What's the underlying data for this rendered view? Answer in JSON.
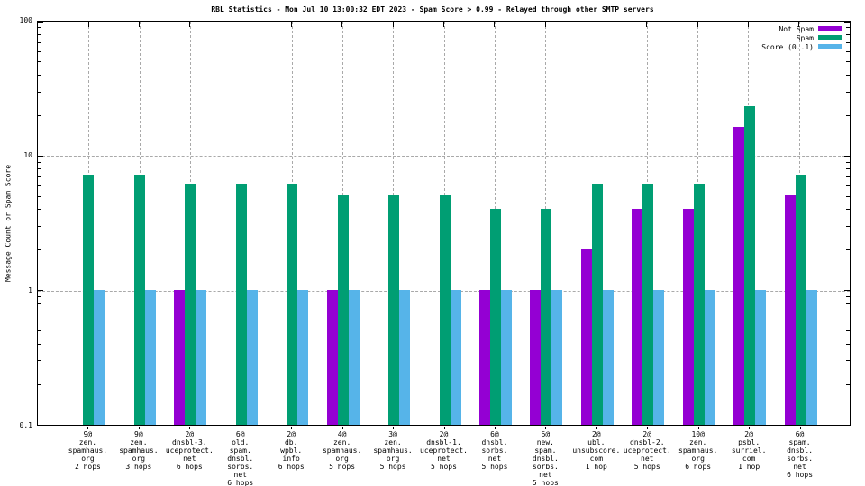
{
  "title": "RBL Statistics - Mon Jul 10 13:00:32 EDT 2023 - Spam Score > 0.99 - Relayed through other SMTP servers",
  "colors": {
    "not_spam": "#9400d3",
    "spam": "#009e73",
    "score": "#56b4e9",
    "grid": "#a9a9a9",
    "axis": "#000000",
    "background": "#ffffff"
  },
  "chart_data": {
    "type": "bar",
    "title": "RBL Statistics - Mon Jul 10 13:00:32 EDT 2023 - Spam Score > 0.99 - Relayed through other SMTP servers",
    "xlabel": "",
    "ylabel": "Message Count or Spam Score",
    "y_scale": "log",
    "ylim": [
      0.1,
      100
    ],
    "y_ticks": [
      {
        "label": "100",
        "value": 100
      },
      {
        "label": "10",
        "value": 10
      },
      {
        "label": "1",
        "value": 1
      },
      {
        "label": "0.1",
        "value": 0.1
      }
    ],
    "grid_y_values": [
      10,
      1
    ],
    "grid": true,
    "legend_position": "top-right",
    "categories": [
      [
        "9@",
        "zen.",
        "spamhaus.",
        "org",
        "2 hops"
      ],
      [
        "9@",
        "zen.",
        "spamhaus.",
        "org",
        "3 hops"
      ],
      [
        "2@",
        "dnsbl-3.",
        "uceprotect.",
        "net",
        "6 hops"
      ],
      [
        "6@",
        "old.",
        "spam.",
        "dnsbl.",
        "sorbs.",
        "net",
        "6 hops"
      ],
      [
        "2@",
        "db.",
        "wpbl.",
        "info",
        "6 hops"
      ],
      [
        "4@",
        "zen.",
        "spamhaus.",
        "org",
        "5 hops"
      ],
      [
        "3@",
        "zen.",
        "spamhaus.",
        "org",
        "5 hops"
      ],
      [
        "2@",
        "dnsbl-1.",
        "uceprotect.",
        "net",
        "5 hops"
      ],
      [
        "6@",
        "dnsbl.",
        "sorbs.",
        "net",
        "5 hops"
      ],
      [
        "6@",
        "new.",
        "spam.",
        "dnsbl.",
        "sorbs.",
        "net",
        "5 hops"
      ],
      [
        "2@",
        "ubl.",
        "unsubscore.",
        "com",
        "1 hop"
      ],
      [
        "2@",
        "dnsbl-2.",
        "uceprotect.",
        "net",
        "5 hops"
      ],
      [
        "10@",
        "zen.",
        "spamhaus.",
        "org",
        "6 hops"
      ],
      [
        "2@",
        "psbl.",
        "surriel.",
        "com",
        "1 hop"
      ],
      [
        "6@",
        "spam.",
        "dnsbl.",
        "sorbs.",
        "net",
        "6 hops"
      ]
    ],
    "series": [
      {
        "name": "Not Spam",
        "color": "#9400d3",
        "values": [
          0,
          0,
          1,
          0,
          0,
          1,
          0,
          0,
          1,
          1,
          2,
          4,
          4,
          16,
          5
        ]
      },
      {
        "name": "Spam",
        "color": "#009e73",
        "values": [
          7,
          7,
          6,
          6,
          6,
          5,
          5,
          5,
          4,
          4,
          6,
          6,
          6,
          23,
          7
        ]
      },
      {
        "name": "Score (0..1)",
        "color": "#56b4e9",
        "values": [
          1,
          1,
          1,
          1,
          1,
          1,
          1,
          1,
          1,
          1,
          1,
          1,
          1,
          1,
          1
        ]
      }
    ]
  }
}
